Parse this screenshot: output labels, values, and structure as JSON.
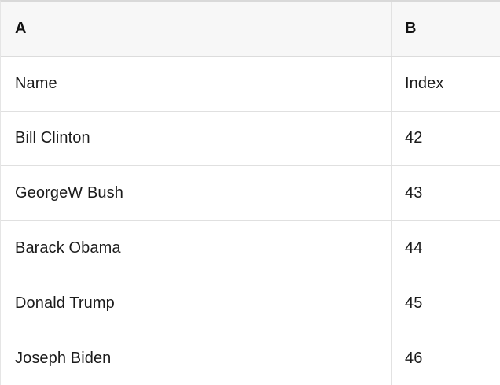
{
  "table": {
    "column_headers": [
      "A",
      "B"
    ],
    "rows": [
      [
        "Name",
        "Index"
      ],
      [
        "Bill Clinton",
        "42"
      ],
      [
        "GeorgeW Bush",
        "43"
      ],
      [
        "Barack Obama",
        "44"
      ],
      [
        "Donald Trump",
        "45"
      ],
      [
        "Joseph Biden",
        "46"
      ]
    ],
    "colors": {
      "header_bg": "#f7f7f7",
      "row_bg": "#ffffff",
      "border": "#e0e0e0",
      "top_border": "#d9d9d9",
      "text": "#1b1b1b",
      "header_text": "#111111"
    }
  }
}
